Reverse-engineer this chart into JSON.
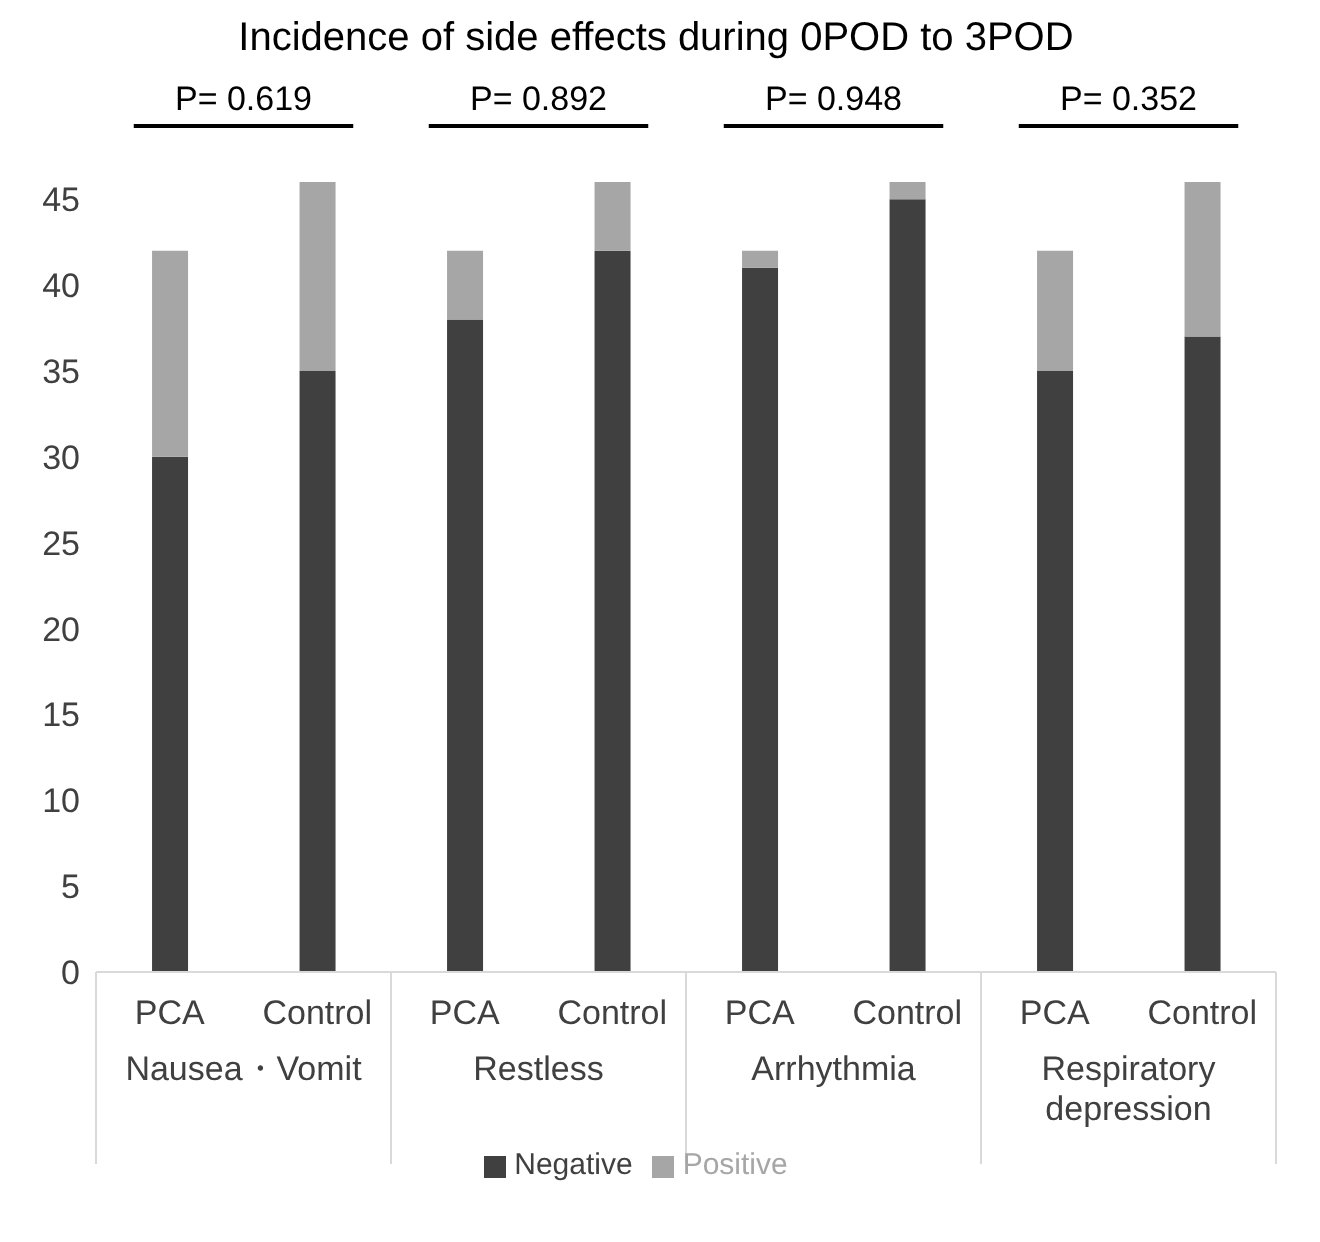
{
  "chart_data": {
    "type": "bar",
    "title": "Incidence of side effects during 0POD to 3POD",
    "categories": [
      "PCA",
      "Control",
      "PCA",
      "Control",
      "PCA",
      "Control",
      "PCA",
      "Control"
    ],
    "series": [
      {
        "name": "Negative",
        "color": "#404040",
        "values": [
          30,
          35,
          38,
          42,
          41,
          45,
          35,
          37
        ]
      },
      {
        "name": "Positive",
        "color": "#a6a6a6",
        "values": [
          12,
          11,
          4,
          4,
          1,
          1,
          7,
          9
        ]
      }
    ],
    "stacked": true,
    "ylim": [
      0,
      46
    ],
    "yticks": [
      0,
      5,
      10,
      15,
      20,
      25,
      30,
      35,
      40,
      45
    ],
    "grid": false,
    "legend": "bottom",
    "annotations": [
      "P= 0.619",
      "P= 0.892",
      "P= 0.948",
      "P= 0.352",
      "Nausea・Vomit",
      "Restless",
      "Arrhythmia",
      "Respiratory depression"
    ]
  }
}
